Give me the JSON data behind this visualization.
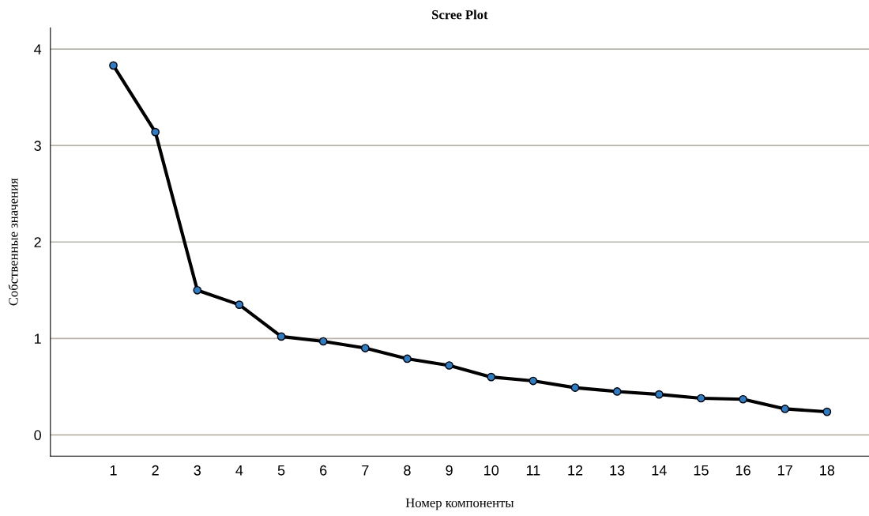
{
  "chart_data": {
    "type": "line",
    "title": "Scree Plot",
    "xlabel": "Номер компоненты",
    "ylabel": "Собственные значения",
    "x": [
      1,
      2,
      3,
      4,
      5,
      6,
      7,
      8,
      9,
      10,
      11,
      12,
      13,
      14,
      15,
      16,
      17,
      18
    ],
    "series": [
      {
        "color": "#000000",
        "colors": [
          "#2a7dc8",
          "#2a7dc8",
          "#2a7dc8",
          "#2a7dc8",
          "#2a7dc8",
          "#2a7dc8",
          "#2a7dc8",
          "#2a7dc8",
          "#2a7dc8",
          "#2a7dc8",
          "#2a7dc8",
          "#2a7dc8",
          "#2a7dc8",
          "#2a7dc8",
          "#2a7dc8",
          "#2a7dc8",
          "#2a7dc8",
          "#2a7dc8"
        ],
        "values": [
          3.83,
          3.14,
          1.5,
          1.35,
          1.02,
          0.97,
          0.9,
          0.79,
          0.72,
          0.6,
          0.56,
          0.49,
          0.45,
          0.42,
          0.38,
          0.37,
          0.27,
          0.24
        ]
      }
    ],
    "xlim": [
      -0.5,
      19
    ],
    "xticks": [
      1,
      2,
      3,
      4,
      5,
      6,
      7,
      8,
      9,
      10,
      11,
      12,
      13,
      14,
      15,
      16,
      17,
      18
    ],
    "ylim": [
      -0.22,
      4.22
    ],
    "yticks": [
      0,
      1,
      2,
      3,
      4
    ],
    "grid": "y",
    "marker": "circle",
    "line_style": "solid",
    "legend": false
  }
}
